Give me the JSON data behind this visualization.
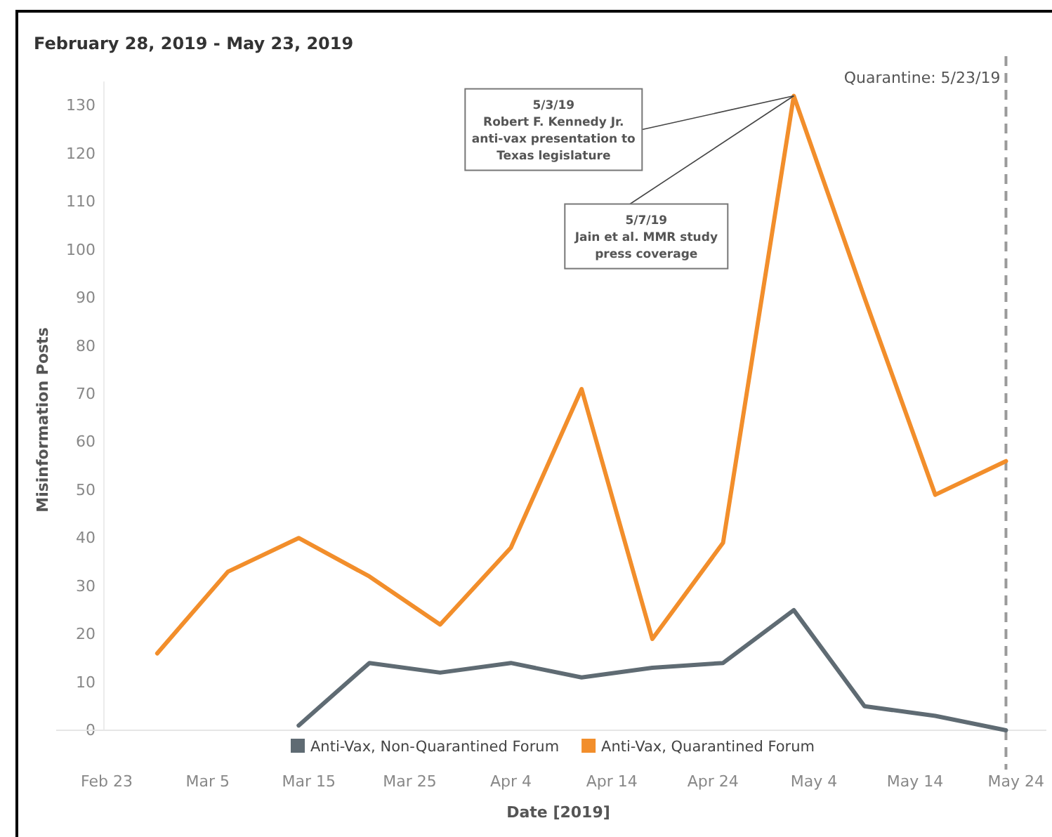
{
  "chart_data": {
    "type": "line",
    "title": "February 28, 2019 - May 23, 2019",
    "xlabel": "Date [2019]",
    "ylabel": "Misinformation Posts",
    "x": [
      "2019-02-28",
      "2019-03-07",
      "2019-03-14",
      "2019-03-21",
      "2019-03-28",
      "2019-04-04",
      "2019-04-11",
      "2019-04-18",
      "2019-04-25",
      "2019-05-02",
      "2019-05-09",
      "2019-05-16",
      "2019-05-23"
    ],
    "series": [
      {
        "name": "Anti-Vax, Non-Quarantined Forum",
        "color": "#5f6b73",
        "values": [
          null,
          null,
          1,
          14,
          12,
          14,
          11,
          13,
          14,
          25,
          5,
          3,
          0
        ]
      },
      {
        "name": "Anti-Vax, Quarantined Forum",
        "color": "#f28e2b",
        "values": [
          16,
          33,
          40,
          32,
          22,
          38,
          71,
          19,
          39,
          132,
          90,
          49,
          56
        ]
      }
    ],
    "xlim": [
      "2019-02-18",
      "2019-05-27"
    ],
    "xticks": [
      {
        "value": "2019-02-23",
        "label": "Feb 23"
      },
      {
        "value": "2019-03-05",
        "label": "Mar 5"
      },
      {
        "value": "2019-03-15",
        "label": "Mar 15"
      },
      {
        "value": "2019-03-25",
        "label": "Mar 25"
      },
      {
        "value": "2019-04-04",
        "label": "Apr 4"
      },
      {
        "value": "2019-04-14",
        "label": "Apr 14"
      },
      {
        "value": "2019-04-24",
        "label": "Apr 24"
      },
      {
        "value": "2019-05-04",
        "label": "May 4"
      },
      {
        "value": "2019-05-14",
        "label": "May 14"
      },
      {
        "value": "2019-05-24",
        "label": "May 24"
      }
    ],
    "ylim": [
      0,
      135
    ],
    "yticks": [
      0,
      10,
      20,
      30,
      40,
      50,
      60,
      70,
      80,
      90,
      100,
      110,
      120,
      130
    ],
    "ref_lines": [
      {
        "axis": "x",
        "value": "2019-05-23",
        "label": "Quarantine: 5/23/19",
        "color": "#9a9a9a",
        "line_style": "dashed"
      }
    ],
    "annotations": [
      {
        "text": "5/3/19\nRobert F. Kennedy Jr.\nanti-vax presentation to\nTexas legislature",
        "x": "2019-05-02",
        "y": 132
      },
      {
        "text": "5/7/19\nJain et al. MMR study\npress coverage",
        "x": "2019-05-02",
        "y": 132
      }
    ],
    "legend": "bottom",
    "grid": false,
    "marker": "none",
    "line_style": "solid"
  }
}
